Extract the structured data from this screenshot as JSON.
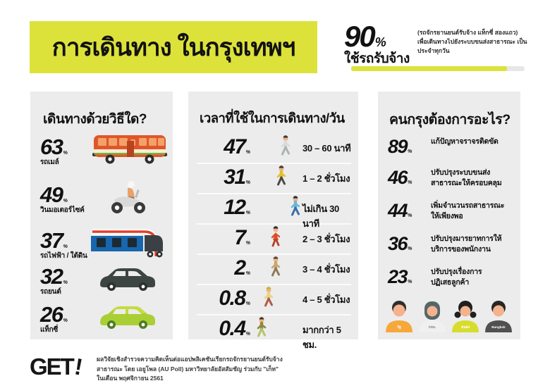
{
  "percent_sign": "%",
  "title": "การเดินทาง ในกรุงเทพฯ",
  "top_stat": {
    "value": "90",
    "label": "ใช้รถรับจ้าง",
    "note_line1": "(รถจักรยานยนต์รับจ้าง แท็กซี่ สองแถว)",
    "note_line2": "เพื่อเดินทางไปยังระบบขนส่งสาธารณะ",
    "note_line3": "เป็นประจำทุกวัน",
    "bar_percent": 90
  },
  "modes": {
    "heading": "เดินทางด้วยวิธีใด?",
    "items": [
      {
        "pct": "63",
        "label": "รถเมล์",
        "icon": "bus-icon"
      },
      {
        "pct": "49",
        "label": "วินมอเตอร์ไซค์",
        "icon": "motorcycle-icon"
      },
      {
        "pct": "37",
        "label": "รถไฟฟ้า / ใต้ดิน",
        "icon": "train-icon"
      },
      {
        "pct": "32",
        "label": "รถยนต์",
        "icon": "car-icon"
      },
      {
        "pct": "26",
        "label": "แท็กซี่",
        "icon": "taxi-icon"
      }
    ]
  },
  "time": {
    "heading": "เวลาที่ใช้ในการเดินทาง/วัน",
    "items": [
      {
        "pct": "47",
        "label": "30 – 60 นาที"
      },
      {
        "pct": "31",
        "label": "1 – 2 ชั่วโมง"
      },
      {
        "pct": "12",
        "label": "ไม่เกิน 30 นาที"
      },
      {
        "pct": "7",
        "label": "2 – 3 ชั่วโมง"
      },
      {
        "pct": "2",
        "label": "3 – 4 ชั่วโมง"
      },
      {
        "pct": "0.8",
        "label": "4 – 5 ชั่วโมง"
      },
      {
        "pct": "0.4",
        "label": "มากกว่า 5 ชม."
      }
    ]
  },
  "wants": {
    "heading": "คนกรุงต้องการอะไร?",
    "items": [
      {
        "pct": "89",
        "line1": "แก้ปัญหาจราจรติดขัด",
        "line2": ""
      },
      {
        "pct": "46",
        "line1": "ปรับปรุงระบบขนส่ง",
        "line2": "สาธารณะให้ครอบคลุม"
      },
      {
        "pct": "44",
        "line1": "เพิ่มจำนวนรถสาธารณะ",
        "line2": "ให้เพียงพอ"
      },
      {
        "pct": "36",
        "line1": "ปรับปรุงมารยาทการให้",
        "line2": "บริการของพนักงาน"
      },
      {
        "pct": "23",
        "line1": "ปรับปรุงเรื่องการ",
        "line2": "ปฏิเสธลูกค้า"
      }
    ],
    "avatars": [
      {
        "shirt_label": "รัฐ"
      },
      {
        "shirt_label": "กทม."
      },
      {
        "shirt_label": "ขนส่ง"
      },
      {
        "shirt_label": "Bangkok"
      }
    ]
  },
  "footer": {
    "logo": "GET",
    "logo_bang": "!",
    "line1": "ผลวิจัยเชิงสำรวจความคิดเห็นต่อแอปพลิเคชันเรียกรถจักรยานยนต์รับจ้าง",
    "line2": "สาธารณะ โดย เอยูโพล (AU Poll) มหาวิทยาลัยอัสสัมชัญ ร่วมกับ \"เก็ท\"",
    "line3": "ในเดือน พฤศจิกายน 2561"
  },
  "colors": {
    "banner_yellow": "#dde23b",
    "panel_gray": "#ececec",
    "bar_fill": "#dde23b",
    "bar_track": "#e7e7e7",
    "bus_orange": "#e0562a",
    "train_blue": "#1866ae",
    "car_dark": "#3d4543",
    "taxi_green": "#a9cf35",
    "text_black": "#111111"
  },
  "chart_data": [
    {
      "type": "bar",
      "title": "เดินทางด้วยวิธีใด?",
      "categories": [
        "รถเมล์",
        "วินมอเตอร์ไซค์",
        "รถไฟฟ้า / ใต้ดิน",
        "รถยนต์",
        "แท็กซี่"
      ],
      "values": [
        63,
        49,
        37,
        32,
        26
      ],
      "unit": "%"
    },
    {
      "type": "bar",
      "title": "เวลาที่ใช้ในการเดินทาง/วัน",
      "categories": [
        "30 – 60 นาที",
        "1 – 2 ชั่วโมง",
        "ไม่เกิน 30 นาที",
        "2 – 3 ชั่วโมง",
        "3 – 4 ชั่วโมง",
        "4 – 5 ชั่วโมง",
        "มากกว่า 5 ชม."
      ],
      "values": [
        47,
        31,
        12,
        7,
        2,
        0.8,
        0.4
      ],
      "unit": "%"
    },
    {
      "type": "bar",
      "title": "คนกรุงต้องการอะไร?",
      "categories": [
        "แก้ปัญหาจราจรติดขัด",
        "ปรับปรุงระบบขนส่งสาธารณะให้ครอบคลุม",
        "เพิ่มจำนวนรถสาธารณะให้เพียงพอ",
        "ปรับปรุงมารยาทการให้บริการของพนักงาน",
        "ปรับปรุงเรื่องการปฏิเสธลูกค้า"
      ],
      "values": [
        89,
        46,
        44,
        36,
        23
      ],
      "unit": "%"
    },
    {
      "type": "bar",
      "title": "ใช้รถรับจ้าง (รถจักรยานยนต์รับจ้าง แท็กซี่ สองแถว) เพื่อเดินทางไปยังระบบขนส่งสาธารณะเป็นประจำทุกวัน",
      "categories": [
        "ใช้รถรับจ้าง"
      ],
      "values": [
        90
      ],
      "unit": "%"
    }
  ]
}
